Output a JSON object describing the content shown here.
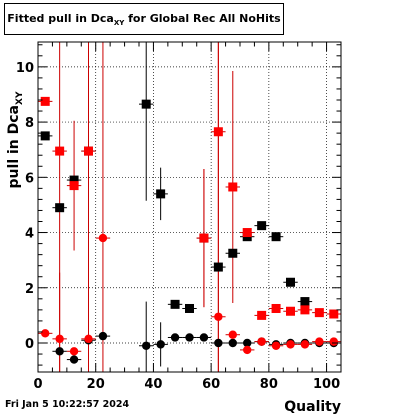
{
  "chart_data": {
    "type": "scatter",
    "title": {
      "main": "Fitted pull in Dca",
      "sub": "XY",
      "suffix": " for Global Rec All NoHits"
    },
    "xlabel": "Quality",
    "ylabel": {
      "main": "pull in Dca",
      "sub": "XY"
    },
    "xlim": [
      0,
      105
    ],
    "ylim": [
      -1.05,
      10.9
    ],
    "xticks": [
      0,
      20,
      40,
      60,
      80,
      100
    ],
    "yticks": [
      0,
      2,
      4,
      6,
      8,
      10
    ],
    "grid": true,
    "series": [
      {
        "marker": "square",
        "color": "#000000",
        "err_color": "#000000",
        "points": [
          {
            "x": 2.5,
            "y": 7.5,
            "err": 0
          },
          {
            "x": 7.5,
            "y": 4.9,
            "err": 0
          },
          {
            "x": 12.5,
            "y": 5.9,
            "err": 0
          },
          {
            "x": 17.5,
            "y": 6.95,
            "err": 0
          },
          {
            "x": 37.5,
            "y": 8.65,
            "err": 3.5
          },
          {
            "x": 42.5,
            "y": 5.4,
            "err": 0.95
          },
          {
            "x": 47.5,
            "y": 1.4,
            "err": 0
          },
          {
            "x": 52.5,
            "y": 1.25,
            "err": 0
          },
          {
            "x": 57.5,
            "y": 3.8,
            "err": 0
          },
          {
            "x": 62.5,
            "y": 2.75,
            "err": 0
          },
          {
            "x": 67.5,
            "y": 3.25,
            "err": 0
          },
          {
            "x": 72.5,
            "y": 3.85,
            "err": 0
          },
          {
            "x": 77.5,
            "y": 4.25,
            "err": 0
          },
          {
            "x": 82.5,
            "y": 3.85,
            "err": 0
          },
          {
            "x": 87.5,
            "y": 2.2,
            "err": 0
          },
          {
            "x": 92.5,
            "y": 1.5,
            "err": 0
          }
        ]
      },
      {
        "marker": "square",
        "color": "#ff0000",
        "err_color": "#cc0000",
        "points": [
          {
            "x": 2.5,
            "y": 8.75,
            "err": 0
          },
          {
            "x": 7.5,
            "y": 6.95,
            "err": 10
          },
          {
            "x": 12.5,
            "y": 5.7,
            "err": 2.35
          },
          {
            "x": 17.5,
            "y": 6.95,
            "err": 10
          },
          {
            "x": 57.5,
            "y": 3.8,
            "err": 2.5
          },
          {
            "x": 62.5,
            "y": 7.65,
            "err": 10
          },
          {
            "x": 67.5,
            "y": 5.65,
            "err": 4.2
          },
          {
            "x": 72.5,
            "y": 4.0,
            "err": 0
          },
          {
            "x": 77.5,
            "y": 1.0,
            "err": 0
          },
          {
            "x": 82.5,
            "y": 1.25,
            "err": 0
          },
          {
            "x": 87.5,
            "y": 1.15,
            "err": 0
          },
          {
            "x": 92.5,
            "y": 1.2,
            "err": 0
          },
          {
            "x": 97.5,
            "y": 1.1,
            "err": 0
          },
          {
            "x": 102.5,
            "y": 1.05,
            "err": 0
          }
        ]
      },
      {
        "marker": "circle",
        "color": "#000000",
        "err_color": "#000000",
        "points": [
          {
            "x": 7.5,
            "y": -0.3,
            "err": 0
          },
          {
            "x": 12.5,
            "y": -0.6,
            "err": 0
          },
          {
            "x": 17.5,
            "y": 0.1,
            "err": 0
          },
          {
            "x": 22.5,
            "y": 0.25,
            "err": 0
          },
          {
            "x": 37.5,
            "y": -0.1,
            "err": 1.6
          },
          {
            "x": 42.5,
            "y": -0.05,
            "err": 0.8
          },
          {
            "x": 47.5,
            "y": 0.2,
            "err": 0
          },
          {
            "x": 52.5,
            "y": 0.2,
            "err": 0
          },
          {
            "x": 57.5,
            "y": 0.2,
            "err": 0
          },
          {
            "x": 62.5,
            "y": 0.0,
            "err": 0
          },
          {
            "x": 67.5,
            "y": 0.0,
            "err": 0
          },
          {
            "x": 72.5,
            "y": 0.0,
            "err": 0
          },
          {
            "x": 77.5,
            "y": 0.05,
            "err": 0
          },
          {
            "x": 82.5,
            "y": -0.05,
            "err": 0
          },
          {
            "x": 87.5,
            "y": 0.0,
            "err": 0
          },
          {
            "x": 92.5,
            "y": 0.0,
            "err": 0
          },
          {
            "x": 97.5,
            "y": 0.0,
            "err": 0
          },
          {
            "x": 102.5,
            "y": 0.0,
            "err": 0
          }
        ]
      },
      {
        "marker": "circle",
        "color": "#ff0000",
        "err_color": "#cc0000",
        "points": [
          {
            "x": 2.5,
            "y": 0.35,
            "err": 0
          },
          {
            "x": 7.5,
            "y": 0.15,
            "err": 2.4
          },
          {
            "x": 12.5,
            "y": -0.3,
            "err": 0
          },
          {
            "x": 17.5,
            "y": 0.15,
            "err": 10
          },
          {
            "x": 22.5,
            "y": 3.8,
            "err": 10
          },
          {
            "x": 57.5,
            "y": 3.8,
            "err": 2.5
          },
          {
            "x": 62.5,
            "y": 0.95,
            "err": 10
          },
          {
            "x": 67.5,
            "y": 0.3,
            "err": 0
          },
          {
            "x": 72.5,
            "y": -0.25,
            "err": 0
          },
          {
            "x": 77.5,
            "y": 0.05,
            "err": 0
          },
          {
            "x": 82.5,
            "y": -0.1,
            "err": 0
          },
          {
            "x": 87.5,
            "y": -0.05,
            "err": 0
          },
          {
            "x": 92.5,
            "y": -0.05,
            "err": 0
          },
          {
            "x": 97.5,
            "y": 0.05,
            "err": 0
          },
          {
            "x": 102.5,
            "y": 0.05,
            "err": 0
          }
        ]
      }
    ]
  },
  "footer": {
    "date": "Fri Jan  5 10:22:57 2024"
  }
}
